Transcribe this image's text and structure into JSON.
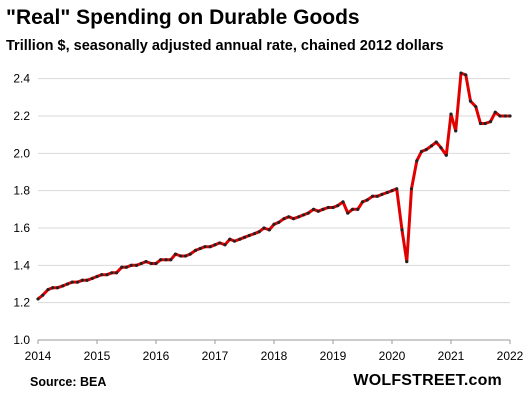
{
  "chart_data": {
    "type": "line",
    "title": "\"Real\" Spending on Durable Goods",
    "subtitle": "Trillion $, seasonally adjusted annual rate, chained 2012 dollars",
    "source": "Source: BEA",
    "brand": "WOLFSTREET.com",
    "xlabel": "",
    "ylabel": "",
    "xlim": [
      2014,
      2022
    ],
    "ylim": [
      1.0,
      2.5
    ],
    "x_ticks": [
      "2014",
      "2015",
      "2016",
      "2017",
      "2018",
      "2019",
      "2020",
      "2021",
      "2022"
    ],
    "y_ticks": [
      "1.0",
      "1.2",
      "1.4",
      "1.6",
      "1.8",
      "2.0",
      "2.2",
      "2.4"
    ],
    "grid": "horizontal",
    "line_color": "#e00000",
    "marker_color": "#222222",
    "series": [
      {
        "values": [
          [
            2014.0,
            1.22
          ],
          [
            2014.08,
            1.24
          ],
          [
            2014.17,
            1.27
          ],
          [
            2014.25,
            1.28
          ],
          [
            2014.33,
            1.28
          ],
          [
            2014.42,
            1.29
          ],
          [
            2014.5,
            1.3
          ],
          [
            2014.58,
            1.31
          ],
          [
            2014.67,
            1.31
          ],
          [
            2014.75,
            1.32
          ],
          [
            2014.83,
            1.32
          ],
          [
            2014.92,
            1.33
          ],
          [
            2015.0,
            1.34
          ],
          [
            2015.08,
            1.35
          ],
          [
            2015.17,
            1.35
          ],
          [
            2015.25,
            1.36
          ],
          [
            2015.33,
            1.36
          ],
          [
            2015.42,
            1.39
          ],
          [
            2015.5,
            1.39
          ],
          [
            2015.58,
            1.4
          ],
          [
            2015.67,
            1.4
          ],
          [
            2015.75,
            1.41
          ],
          [
            2015.83,
            1.42
          ],
          [
            2015.92,
            1.41
          ],
          [
            2016.0,
            1.41
          ],
          [
            2016.08,
            1.43
          ],
          [
            2016.17,
            1.43
          ],
          [
            2016.25,
            1.43
          ],
          [
            2016.33,
            1.46
          ],
          [
            2016.42,
            1.45
          ],
          [
            2016.5,
            1.45
          ],
          [
            2016.58,
            1.46
          ],
          [
            2016.67,
            1.48
          ],
          [
            2016.75,
            1.49
          ],
          [
            2016.83,
            1.5
          ],
          [
            2016.92,
            1.5
          ],
          [
            2017.0,
            1.51
          ],
          [
            2017.08,
            1.52
          ],
          [
            2017.17,
            1.51
          ],
          [
            2017.25,
            1.54
          ],
          [
            2017.33,
            1.53
          ],
          [
            2017.42,
            1.54
          ],
          [
            2017.5,
            1.55
          ],
          [
            2017.58,
            1.56
          ],
          [
            2017.67,
            1.57
          ],
          [
            2017.75,
            1.58
          ],
          [
            2017.83,
            1.6
          ],
          [
            2017.92,
            1.59
          ],
          [
            2018.0,
            1.62
          ],
          [
            2018.08,
            1.63
          ],
          [
            2018.17,
            1.65
          ],
          [
            2018.25,
            1.66
          ],
          [
            2018.33,
            1.65
          ],
          [
            2018.42,
            1.66
          ],
          [
            2018.5,
            1.67
          ],
          [
            2018.58,
            1.68
          ],
          [
            2018.67,
            1.7
          ],
          [
            2018.75,
            1.69
          ],
          [
            2018.83,
            1.7
          ],
          [
            2018.92,
            1.71
          ],
          [
            2019.0,
            1.71
          ],
          [
            2019.08,
            1.72
          ],
          [
            2019.17,
            1.74
          ],
          [
            2019.25,
            1.68
          ],
          [
            2019.33,
            1.7
          ],
          [
            2019.42,
            1.7
          ],
          [
            2019.5,
            1.74
          ],
          [
            2019.58,
            1.75
          ],
          [
            2019.67,
            1.77
          ],
          [
            2019.75,
            1.77
          ],
          [
            2019.83,
            1.78
          ],
          [
            2019.92,
            1.79
          ],
          [
            2020.0,
            1.8
          ],
          [
            2020.08,
            1.81
          ],
          [
            2020.17,
            1.59
          ],
          [
            2020.25,
            1.42
          ],
          [
            2020.33,
            1.81
          ],
          [
            2020.42,
            1.96
          ],
          [
            2020.5,
            2.01
          ],
          [
            2020.58,
            2.02
          ],
          [
            2020.67,
            2.04
          ],
          [
            2020.75,
            2.06
          ],
          [
            2020.83,
            2.03
          ],
          [
            2020.92,
            1.99
          ],
          [
            2021.0,
            2.21
          ],
          [
            2021.08,
            2.12
          ],
          [
            2021.17,
            2.43
          ],
          [
            2021.25,
            2.42
          ],
          [
            2021.33,
            2.28
          ],
          [
            2021.42,
            2.25
          ],
          [
            2021.5,
            2.16
          ],
          [
            2021.58,
            2.16
          ],
          [
            2021.67,
            2.17
          ],
          [
            2021.75,
            2.22
          ],
          [
            2021.83,
            2.2
          ],
          [
            2021.92,
            2.2
          ],
          [
            2022.0,
            2.2
          ]
        ]
      }
    ]
  }
}
